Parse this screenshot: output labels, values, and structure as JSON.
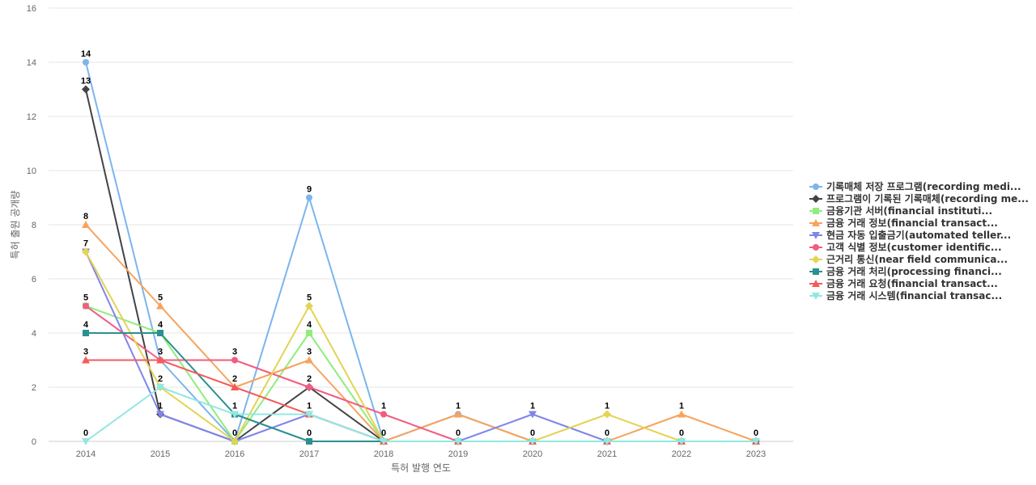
{
  "chart_data": {
    "type": "line",
    "title": "",
    "xlabel": "특허 발행 연도",
    "ylabel": "특허 출원 공개량",
    "ylim": [
      0,
      16
    ],
    "yticks": [
      0,
      2,
      4,
      6,
      8,
      10,
      12,
      14,
      16
    ],
    "grid": true,
    "legend_position": "right",
    "categories": [
      "2014",
      "2015",
      "2016",
      "2017",
      "2018",
      "2019",
      "2020",
      "2021",
      "2022",
      "2023"
    ],
    "series": [
      {
        "name": "기록매체 저장 프로그램(recording medi...",
        "color": "#7cb5ec",
        "marker": "circle",
        "values": [
          14,
          3,
          0,
          9,
          0,
          1,
          0,
          0,
          0,
          0
        ]
      },
      {
        "name": "프로그램이 기록된 기록매체(recording me...",
        "color": "#434348",
        "marker": "diamond",
        "values": [
          13,
          1,
          0,
          2,
          0,
          0,
          0,
          0,
          0,
          0
        ]
      },
      {
        "name": "금융기관 서버(financial instituti...",
        "color": "#90ed7d",
        "marker": "square",
        "values": [
          5,
          4,
          0,
          4,
          0,
          0,
          0,
          0,
          0,
          0
        ]
      },
      {
        "name": "금융 거래 정보(financial transact...",
        "color": "#f7a35c",
        "marker": "triangle",
        "values": [
          8,
          5,
          2,
          3,
          0,
          1,
          0,
          0,
          1,
          0
        ]
      },
      {
        "name": "현금 자동 입출금기(automated teller...",
        "color": "#8085e9",
        "marker": "triangle-down",
        "values": [
          7,
          1,
          0,
          1,
          0,
          0,
          1,
          0,
          0,
          0
        ]
      },
      {
        "name": "고객 식별 정보(customer identific...",
        "color": "#f15c80",
        "marker": "circle",
        "values": [
          5,
          3,
          3,
          2,
          1,
          0,
          0,
          0,
          0,
          0
        ]
      },
      {
        "name": "근거리 통신(near field communica...",
        "color": "#e4d354",
        "marker": "diamond",
        "values": [
          7,
          2,
          0,
          5,
          0,
          0,
          0,
          1,
          0,
          0
        ]
      },
      {
        "name": "금융 거래 처리(processing financi...",
        "color": "#2b908f",
        "marker": "square",
        "values": [
          4,
          4,
          1,
          0,
          0,
          0,
          0,
          0,
          0,
          0
        ]
      },
      {
        "name": "금융 거래 요청(financial transact...",
        "color": "#f45b5b",
        "marker": "triangle",
        "values": [
          3,
          3,
          2,
          1,
          0,
          0,
          0,
          0,
          0,
          0
        ]
      },
      {
        "name": "금융 거래 시스템(financial transac...",
        "color": "#91e8e1",
        "marker": "triangle-down",
        "values": [
          0,
          2,
          1,
          1,
          0,
          0,
          0,
          0,
          0,
          0
        ]
      }
    ],
    "data_labels": [
      {
        "x": "2014",
        "value": 14
      },
      {
        "x": "2014",
        "value": 13
      },
      {
        "x": "2014",
        "value": 8
      },
      {
        "x": "2014",
        "value": 7
      },
      {
        "x": "2014",
        "value": 5
      },
      {
        "x": "2014",
        "value": 4
      },
      {
        "x": "2014",
        "value": 3
      },
      {
        "x": "2014",
        "value": 0
      },
      {
        "x": "2015",
        "value": 5
      },
      {
        "x": "2015",
        "value": 4
      },
      {
        "x": "2015",
        "value": 3
      },
      {
        "x": "2015",
        "value": 2
      },
      {
        "x": "2015",
        "value": 1
      },
      {
        "x": "2016",
        "value": 3
      },
      {
        "x": "2016",
        "value": 2
      },
      {
        "x": "2016",
        "value": 1
      },
      {
        "x": "2016",
        "value": 0
      },
      {
        "x": "2017",
        "value": 9
      },
      {
        "x": "2017",
        "value": 5
      },
      {
        "x": "2017",
        "value": 4
      },
      {
        "x": "2017",
        "value": 3
      },
      {
        "x": "2017",
        "value": 2
      },
      {
        "x": "2017",
        "value": 1
      },
      {
        "x": "2017",
        "value": 0
      },
      {
        "x": "2018",
        "value": 1
      },
      {
        "x": "2018",
        "value": 0
      },
      {
        "x": "2019",
        "value": 1
      },
      {
        "x": "2019",
        "value": 0
      },
      {
        "x": "2020",
        "value": 1
      },
      {
        "x": "2020",
        "value": 0
      },
      {
        "x": "2021",
        "value": 1
      },
      {
        "x": "2021",
        "value": 0
      },
      {
        "x": "2022",
        "value": 1
      },
      {
        "x": "2022",
        "value": 0
      },
      {
        "x": "2023",
        "value": 0
      }
    ]
  }
}
